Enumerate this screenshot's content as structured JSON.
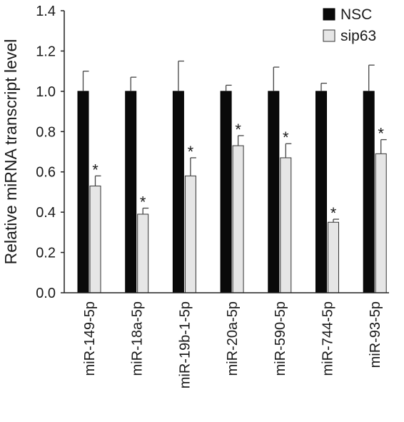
{
  "chart_data": {
    "type": "bar",
    "ylabel": "Relative miRNA transcript level",
    "ylim": [
      0,
      1.4
    ],
    "yticks": [
      "0.0",
      "0.2",
      "0.4",
      "0.6",
      "0.8",
      "1.0",
      "1.2",
      "1.4"
    ],
    "categories": [
      "miR-149-5p",
      "miR-18a-5p",
      "miR-19b-1-5p",
      "miR-20a-5p",
      "miR-590-5p",
      "miR-744-5p",
      "miR-93-5p"
    ],
    "series": [
      {
        "name": "NSC",
        "color": "#0a0a0a",
        "values": [
          1.0,
          1.0,
          1.0,
          1.0,
          1.0,
          1.0,
          1.0
        ],
        "errors": [
          0.1,
          0.07,
          0.15,
          0.03,
          0.12,
          0.04,
          0.13
        ]
      },
      {
        "name": "sip63",
        "color": "#e6e6e6",
        "values": [
          0.53,
          0.39,
          0.58,
          0.73,
          0.67,
          0.35,
          0.69
        ],
        "errors": [
          0.05,
          0.03,
          0.09,
          0.05,
          0.07,
          0.015,
          0.07
        ],
        "significance": [
          "*",
          "*",
          "*",
          "*",
          "*",
          "*",
          "*"
        ]
      }
    ],
    "legend_position": "top-right",
    "grid": false
  }
}
